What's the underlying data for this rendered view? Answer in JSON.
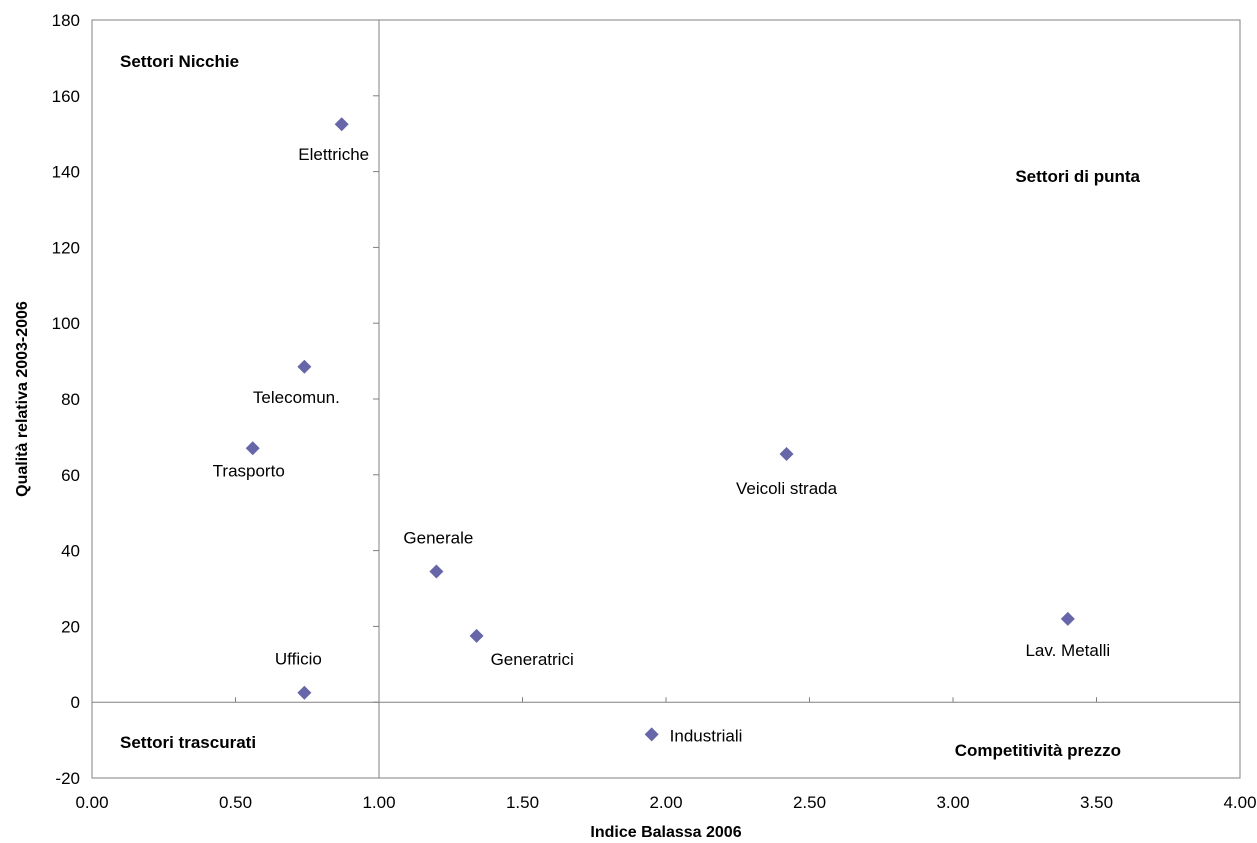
{
  "chart_data": {
    "type": "scatter",
    "title": "",
    "xlabel": "Indice Balassa 2006",
    "ylabel": "Qualità relativa 2003-2006",
    "xlim": [
      0,
      4
    ],
    "ylim": [
      -20,
      180
    ],
    "x_ticks": [
      "0.00",
      "0.50",
      "1.00",
      "1.50",
      "2.00",
      "2.50",
      "3.00",
      "3.50",
      "4.00"
    ],
    "y_ticks": [
      "-20",
      "0",
      "20",
      "40",
      "60",
      "80",
      "100",
      "120",
      "140",
      "160",
      "180"
    ],
    "grid": false,
    "marker": "diamond",
    "marker_color": "#6666A8",
    "reference_lines": {
      "x": 1.0,
      "y": 0
    },
    "points": [
      {
        "label": "Elettriche",
        "x": 0.87,
        "y": 152.5
      },
      {
        "label": "Telecomun.",
        "x": 0.74,
        "y": 88.5
      },
      {
        "label": "Trasporto",
        "x": 0.56,
        "y": 67
      },
      {
        "label": "Ufficio",
        "x": 0.74,
        "y": 2.5
      },
      {
        "label": "Generale",
        "x": 1.2,
        "y": 34.5
      },
      {
        "label": "Generatrici",
        "x": 1.34,
        "y": 17.5
      },
      {
        "label": "Industriali",
        "x": 1.95,
        "y": -8.5
      },
      {
        "label": "Veicoli strada",
        "x": 2.42,
        "y": 65.5
      },
      {
        "label": "Lav. Metalli",
        "x": 3.4,
        "y": 22
      }
    ],
    "quadrant_labels": [
      {
        "text": "Settori Nicchie",
        "position": "top-left"
      },
      {
        "text": "Settori di punta",
        "position": "top-right"
      },
      {
        "text": "Settori trascurati",
        "position": "bottom-left"
      },
      {
        "text": "Competitività prezzo",
        "position": "bottom-right"
      }
    ]
  }
}
